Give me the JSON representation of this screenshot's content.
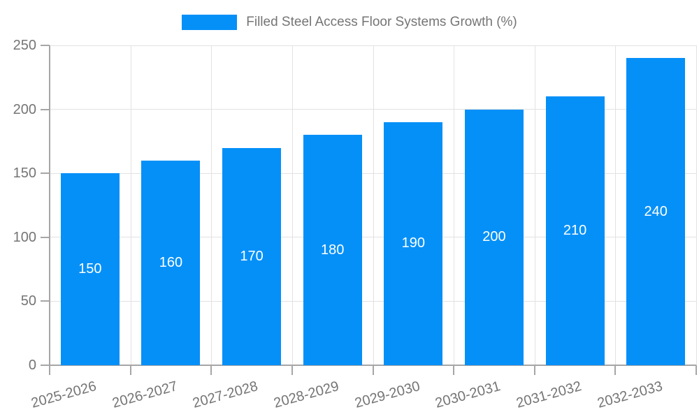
{
  "legend": {
    "label": "Filled Steel Access Floor Systems Growth (%)"
  },
  "chart_data": {
    "type": "bar",
    "title": "Filled Steel Access Floor Systems Growth (%)",
    "categories": [
      "2025-2026",
      "2026-2027",
      "2027-2028",
      "2028-2029",
      "2029-2030",
      "2030-2031",
      "2031-2032",
      "2032-2033"
    ],
    "values": [
      150,
      160,
      170,
      180,
      190,
      200,
      210,
      240
    ],
    "xlabel": "",
    "ylabel": "",
    "ylim": [
      0,
      250
    ],
    "yticks": [
      0,
      50,
      100,
      150,
      200,
      250
    ],
    "grid": true,
    "legend_position": "top-center",
    "bar_labels_inside": true,
    "colors": {
      "bar": "#0590f8",
      "bar_label": "#ffffff",
      "axis_text": "#757575",
      "axis_line": "#a6a6a6",
      "gridline": "#e2e2e2",
      "background": "#ffffff"
    }
  }
}
